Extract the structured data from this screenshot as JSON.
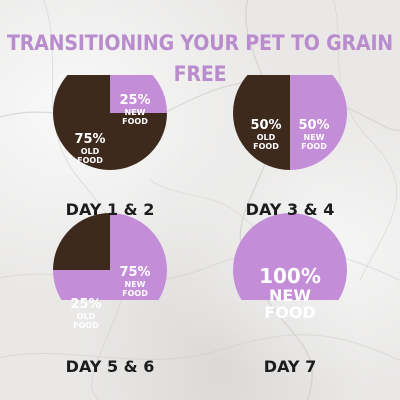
{
  "title": "TRANSITIONING YOUR PET TO GRAIN FREE",
  "colors": {
    "title": "#b98ccd",
    "new_food": "#c48dd8",
    "old_food": "#3d2a1c",
    "text": "#1c1c1c",
    "label": "#ffffff"
  },
  "chart_data": [
    {
      "type": "pie",
      "title": "DAY 1 & 2",
      "slices": [
        {
          "name": "NEW FOOD",
          "value": 25,
          "percent_label": "25%",
          "text": "NEW FOOD"
        },
        {
          "name": "OLD FOOD",
          "value": 75,
          "percent_label": "75%",
          "text": "OLD FOOD"
        }
      ]
    },
    {
      "type": "pie",
      "title": "DAY 3 & 4",
      "slices": [
        {
          "name": "NEW FOOD",
          "value": 50,
          "percent_label": "50%",
          "text": "NEW FOOD"
        },
        {
          "name": "OLD FOOD",
          "value": 50,
          "percent_label": "50%",
          "text": "OLD FOOD"
        }
      ]
    },
    {
      "type": "pie",
      "title": "DAY 5 & 6",
      "slices": [
        {
          "name": "NEW FOOD",
          "value": 75,
          "percent_label": "75%",
          "text": "NEW FOOD"
        },
        {
          "name": "OLD FOOD",
          "value": 25,
          "percent_label": "25%",
          "text": "OLD FOOD"
        }
      ]
    },
    {
      "type": "pie",
      "title": "DAY 7",
      "slices": [
        {
          "name": "NEW FOOD",
          "value": 100,
          "percent_label": "100%",
          "text": "NEW FOOD"
        }
      ]
    }
  ]
}
